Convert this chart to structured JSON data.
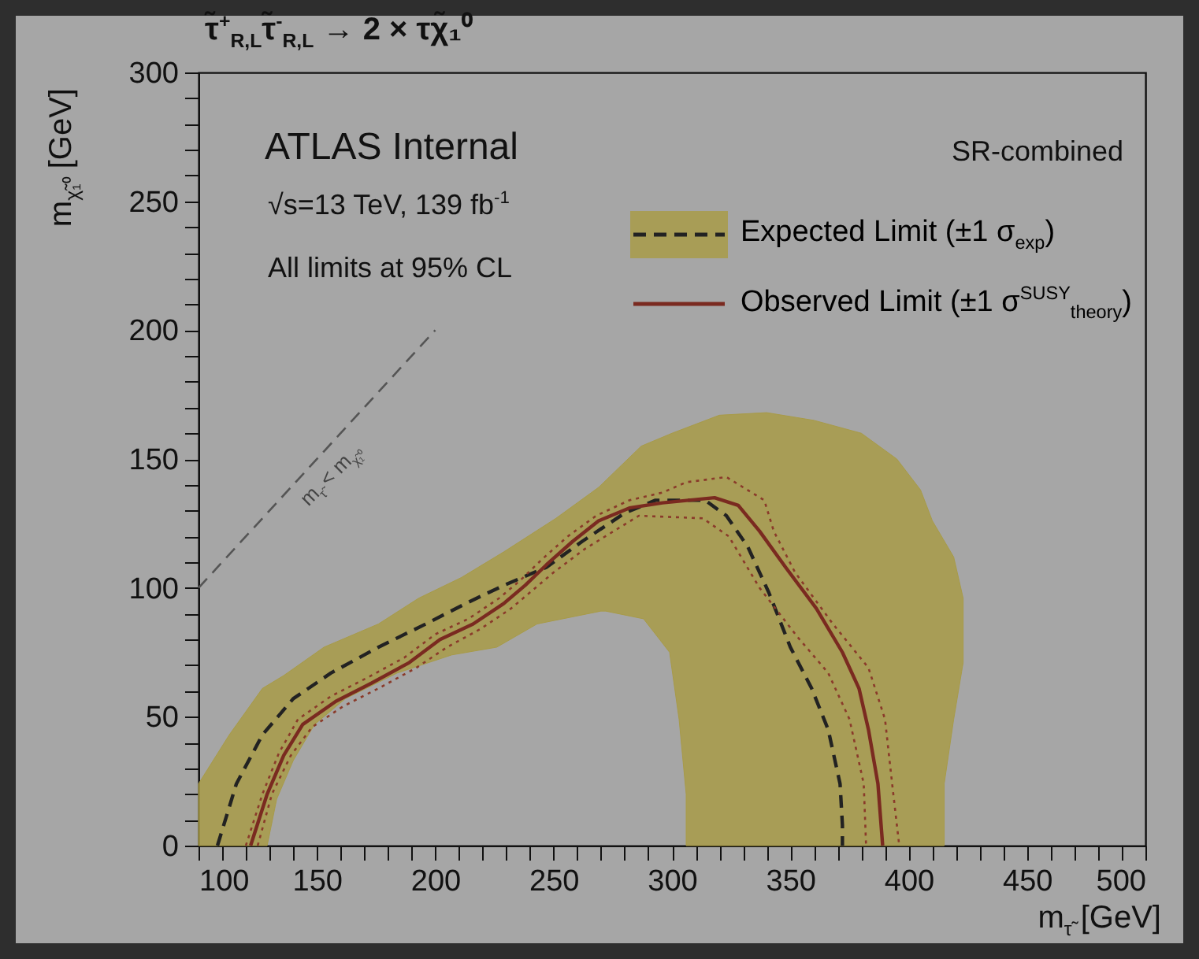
{
  "chart_data": {
    "type": "line",
    "title": "τ̃$^{+}$$_{R,L}$τ̃$^{-}$$_{R,L}$ → 2 × τχ̃₁⁰",
    "xlabel": "m$_{τ̃}$ [GeV]",
    "ylabel": "m$_{χ̃₁⁰}$ [GeV]",
    "annotations": [
      "ATLAS Internal",
      "√s=13 TeV, 139 fb$^{-1}$",
      "All limits at 95% CL",
      "SR-combined",
      "m$_{τ̃}$ < m$_{χ̃₁⁰}$"
    ],
    "xlim": [
      100,
      500
    ],
    "ylim": [
      0,
      300
    ],
    "xticks": [
      100,
      {
        "value": 110,
        "label": null
      },
      {
        "value": 120,
        "label": null
      },
      {
        "value": 130,
        "label": null
      },
      {
        "value": 140,
        "label": null
      },
      150,
      {
        "value": 160,
        "label": null
      },
      {
        "value": 170,
        "label": null
      },
      {
        "value": 180,
        "label": null
      },
      {
        "value": 190,
        "label": null
      },
      200,
      {
        "value": 210,
        "label": null
      },
      {
        "value": 220,
        "label": null
      },
      {
        "value": 230,
        "label": null
      },
      {
        "value": 240,
        "label": null
      },
      250,
      {
        "value": 260,
        "label": null
      },
      {
        "value": 270,
        "label": null
      },
      {
        "value": 280,
        "label": null
      },
      {
        "value": 290,
        "label": null
      },
      300,
      {
        "value": 310,
        "label": null
      },
      {
        "value": 320,
        "label": null
      },
      {
        "value": 330,
        "label": null
      },
      {
        "value": 340,
        "label": null
      },
      350,
      {
        "value": 360,
        "label": null
      },
      {
        "value": 370,
        "label": null
      },
      {
        "value": 380,
        "label": null
      },
      {
        "value": 390,
        "label": null
      },
      400,
      {
        "value": 410,
        "label": null
      },
      {
        "value": 420,
        "label": null
      },
      {
        "value": 430,
        "label": null
      },
      {
        "value": 440,
        "label": null
      },
      450,
      {
        "value": 460,
        "label": null
      },
      {
        "value": 470,
        "label": null
      },
      {
        "value": 480,
        "label": null
      },
      {
        "value": 490,
        "label": null
      },
      500
    ],
    "yticks": [
      0,
      {
        "value": 10,
        "label": null
      },
      {
        "value": 20,
        "label": null
      },
      {
        "value": 30,
        "label": null
      },
      {
        "value": 40,
        "label": null
      },
      50,
      {
        "value": 60,
        "label": null
      },
      {
        "value": 70,
        "label": null
      },
      {
        "value": 80,
        "label": null
      },
      {
        "value": 90,
        "label": null
      },
      100,
      {
        "value": 110,
        "label": null
      },
      {
        "value": 120,
        "label": null
      },
      {
        "value": 130,
        "label": null
      },
      {
        "value": 140,
        "label": null
      },
      150,
      {
        "value": 160,
        "label": null
      },
      {
        "value": 170,
        "label": null
      },
      {
        "value": 180,
        "label": null
      },
      {
        "value": 190,
        "label": null
      },
      200,
      {
        "value": 210,
        "label": null
      },
      {
        "value": 220,
        "label": null
      },
      {
        "value": 230,
        "label": null
      },
      {
        "value": 240,
        "label": null
      },
      250,
      {
        "value": 260,
        "label": null
      },
      {
        "value": 270,
        "label": null
      },
      {
        "value": 280,
        "label": null
      },
      {
        "value": 290,
        "label": null
      },
      300
    ],
    "legend": "top right",
    "marker": "none",
    "series": [
      {
        "type": "area",
        "color": "#a89b48",
        "x": [
          100,
          100,
          113,
          127,
          136,
          153,
          176,
          193,
          211,
          229,
          251,
          269,
          287,
          300,
          320,
          340,
          360,
          380,
          395,
          405,
          410,
          419,
          423,
          423,
          419,
          415,
          415,
          306,
          306,
          303,
          299,
          288,
          272,
          270,
          243,
          226,
          207,
          184,
          162,
          149,
          140,
          133,
          129,
          100
        ],
        "values": [
          0,
          24,
          43,
          61,
          66,
          77,
          86,
          96,
          104,
          114,
          127,
          139,
          155,
          160,
          167,
          168,
          165,
          160,
          150,
          138,
          126,
          112,
          96,
          71,
          49,
          24,
          0,
          0,
          20,
          49,
          75,
          88,
          91,
          91,
          86,
          77,
          74,
          67,
          57,
          47,
          33,
          18,
          0,
          0
        ]
      },
      {
        "color": "#555555",
        "line_style": "dashed",
        "x": [
          100,
          200
        ],
        "values": [
          100,
          200
        ]
      },
      {
        "name": "Expected Limit (±1 σ$_{exp}$)",
        "color": "#222222",
        "line_style": "dashed",
        "x": [
          108,
          116,
          127,
          140,
          156,
          176,
          196,
          213,
          229,
          247,
          262,
          280,
          293,
          297,
          314,
          323,
          332,
          341,
          350,
          359,
          366,
          371,
          372,
          372
        ],
        "values": [
          0,
          24,
          43,
          57,
          67,
          77,
          86,
          94,
          101,
          108,
          118,
          129,
          134,
          134,
          134,
          128,
          116,
          98,
          77,
          61,
          45,
          24,
          8,
          0
        ]
      },
      {
        "color": "#8a3a2a",
        "line_style": "dotted",
        "x": [
          120,
          127,
          134,
          142,
          156,
          171,
          187,
          200,
          214,
          227,
          236,
          245,
          256,
          268,
          282,
          296,
          306,
          323,
          339,
          343,
          352,
          368,
          383,
          390,
          393,
          396
        ],
        "values": [
          0,
          20,
          36,
          49,
          58,
          65,
          73,
          82,
          88,
          96,
          103,
          111,
          120,
          128,
          134,
          137,
          141,
          143,
          134,
          122,
          106,
          86,
          69,
          49,
          24,
          0
        ]
      },
      {
        "color": "#8a3a2a",
        "line_style": "dotted",
        "x": [
          125,
          131,
          139,
          148,
          161,
          176,
          192,
          205,
          219,
          232,
          241,
          250,
          263,
          286,
          313,
          324,
          337,
          353,
          366,
          375,
          381,
          382
        ],
        "values": [
          0,
          20,
          35,
          46,
          54,
          61,
          69,
          77,
          84,
          92,
          99,
          106,
          115,
          128,
          127,
          120,
          100,
          81,
          67,
          49,
          24,
          0
        ]
      },
      {
        "name": "Observed Limit (±1 σ$^{SUSY}$$_{theory}$)",
        "color": "#7a2a20",
        "line_style": "solid",
        "x": [
          122,
          129,
          136,
          144,
          158,
          173,
          189,
          202,
          216,
          229,
          238,
          247,
          258,
          269,
          282,
          296,
          318,
          328,
          337,
          348,
          361,
          372,
          379,
          383,
          387,
          389
        ],
        "values": [
          0,
          20,
          35,
          47,
          56,
          63,
          71,
          80,
          86,
          94,
          101,
          109,
          118,
          126,
          131,
          133,
          135,
          132,
          122,
          108,
          92,
          75,
          61,
          45,
          24,
          0
        ]
      }
    ]
  }
}
